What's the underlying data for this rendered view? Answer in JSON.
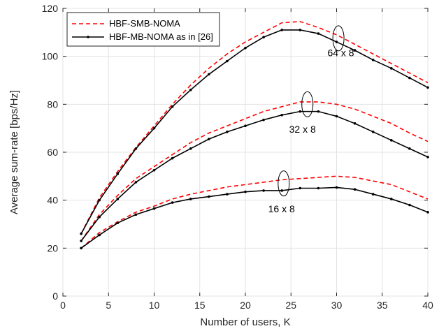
{
  "chart_data": {
    "type": "line",
    "title": "",
    "xlabel": "Number of users, K",
    "ylabel": "Average sum-rate [bps/Hz]",
    "xlim": [
      0,
      40
    ],
    "ylim": [
      0,
      120
    ],
    "xticks": [
      0,
      5,
      10,
      15,
      20,
      25,
      30,
      35,
      40
    ],
    "yticks": [
      0,
      20,
      40,
      60,
      80,
      100,
      120
    ],
    "grid": true,
    "legend_position": "top-left",
    "legend": [
      {
        "label": "HBF-SMB-NOMA",
        "color": "#ff0000",
        "style": "dashed"
      },
      {
        "label": "HBF-MB-NOMA as in [26]",
        "color": "#000000",
        "style": "solid-dots"
      }
    ],
    "annotations": [
      {
        "text": "64 x 8",
        "x": 29.0,
        "y": 100.0,
        "ellipse_x": 30.2,
        "ellipse_y": 107.5
      },
      {
        "text": "32 x 8",
        "x": 24.8,
        "y": 68.2,
        "ellipse_x": 26.8,
        "ellipse_y": 80.0
      },
      {
        "text": "16 x 8",
        "x": 22.5,
        "y": 35.0,
        "ellipse_x": 24.2,
        "ellipse_y": 47.0
      }
    ],
    "series": [
      {
        "label": "HBF-SMB-NOMA",
        "group": "64 x 8",
        "style": "dashed",
        "color": "#ff0000",
        "x": [
          2,
          4,
          6,
          8,
          10,
          12,
          14,
          16,
          18,
          20,
          22,
          24,
          26,
          28,
          30,
          32,
          34,
          36,
          38,
          40
        ],
        "y": [
          26,
          41,
          52,
          62,
          71,
          80,
          88,
          95,
          101,
          106,
          110,
          114,
          114.5,
          112,
          109,
          105,
          101,
          97,
          93,
          89
        ]
      },
      {
        "label": "HBF-MB-NOMA as in [26]",
        "group": "64 x 8",
        "style": "solid",
        "color": "#000000",
        "x": [
          2,
          4,
          6,
          8,
          10,
          12,
          14,
          16,
          18,
          20,
          22,
          24,
          26,
          28,
          30,
          32,
          34,
          36,
          38,
          40
        ],
        "y": [
          26,
          40,
          51,
          61.5,
          70,
          79,
          86,
          92.5,
          98,
          103.5,
          108,
          111,
          111,
          109.5,
          106,
          102.5,
          98.5,
          95,
          91,
          87
        ]
      },
      {
        "label": "HBF-SMB-NOMA",
        "group": "32 x 8",
        "style": "dashed",
        "color": "#ff0000",
        "x": [
          2,
          4,
          6,
          8,
          10,
          12,
          14,
          16,
          18,
          20,
          22,
          24,
          26,
          28,
          30,
          32,
          34,
          36,
          38,
          40
        ],
        "y": [
          23,
          34,
          42,
          49,
          54,
          59,
          64,
          68,
          71,
          74,
          77,
          79,
          81,
          81,
          80,
          78,
          75,
          72,
          68,
          64.5
        ]
      },
      {
        "label": "HBF-MB-NOMA as in [26]",
        "group": "32 x 8",
        "style": "solid",
        "color": "#000000",
        "x": [
          2,
          4,
          6,
          8,
          10,
          12,
          14,
          16,
          18,
          20,
          22,
          24,
          26,
          28,
          30,
          32,
          34,
          36,
          38,
          40
        ],
        "y": [
          23,
          33,
          40.5,
          47.5,
          52.5,
          57.5,
          61.5,
          65.5,
          68.5,
          71,
          73.5,
          75.5,
          77,
          77,
          75,
          72,
          68.5,
          65,
          61.5,
          58
        ]
      },
      {
        "label": "HBF-SMB-NOMA",
        "group": "16 x 8",
        "style": "dashed",
        "color": "#ff0000",
        "x": [
          2,
          4,
          6,
          8,
          10,
          12,
          14,
          16,
          18,
          20,
          22,
          24,
          26,
          28,
          30,
          32,
          34,
          36,
          38,
          40
        ],
        "y": [
          20,
          26.5,
          31,
          35,
          37.5,
          40.5,
          42.5,
          44,
          45.5,
          46.5,
          47.5,
          48.5,
          49,
          49.5,
          50,
          49.5,
          48,
          46.5,
          43.5,
          40.5
        ]
      },
      {
        "label": "HBF-MB-NOMA as in [26]",
        "group": "16 x 8",
        "style": "solid",
        "color": "#000000",
        "x": [
          2,
          4,
          6,
          8,
          10,
          12,
          14,
          16,
          18,
          20,
          22,
          24,
          26,
          28,
          30,
          32,
          34,
          36,
          38,
          40
        ],
        "y": [
          20,
          25.5,
          30.5,
          34,
          36.5,
          39,
          40.5,
          41.5,
          42.5,
          43.5,
          44,
          44,
          45,
          45,
          45.3,
          44.5,
          42.5,
          40.5,
          38,
          35
        ]
      }
    ]
  }
}
